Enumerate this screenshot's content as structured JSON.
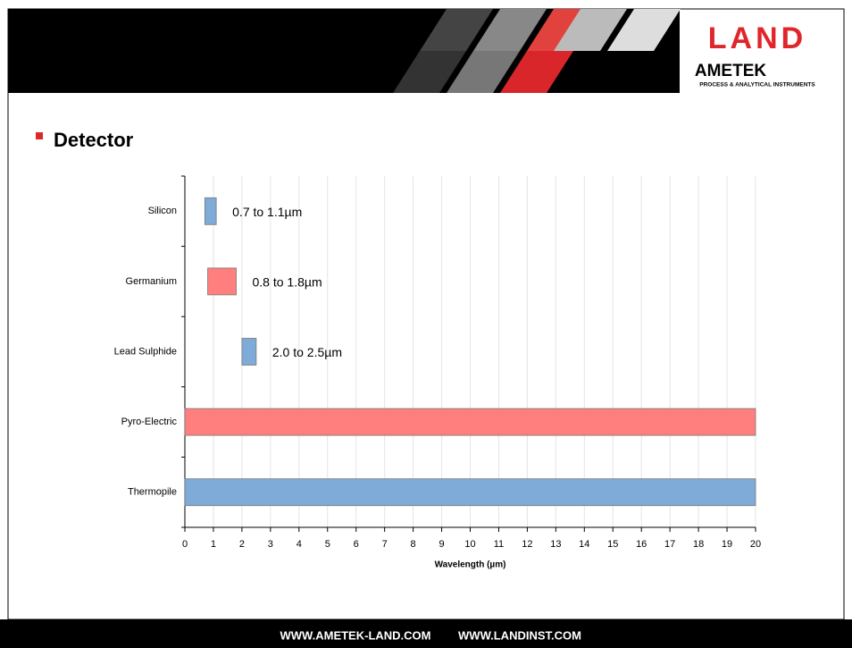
{
  "header": {
    "logo": "LAND",
    "brand": "AMETEK",
    "tagline": "PROCESS & ANALYTICAL INSTRUMENTS"
  },
  "heading": "Detector",
  "footer": {
    "links": [
      "WWW.AMETEK-LAND.COM",
      "WWW.LANDINST.COM"
    ]
  },
  "chart_data": {
    "type": "range-bar",
    "categories": [
      "Silicon",
      "Germanium",
      "Lead Sulphide",
      "Pyro-Electric",
      "Thermopile"
    ],
    "starts": [
      0.7,
      0.8,
      2.0,
      0,
      0
    ],
    "ends": [
      1.1,
      1.8,
      2.5,
      20,
      20
    ],
    "value_labels": [
      "0.7 to 1.1µm",
      "0.8 to 1.8µm",
      "2.0 to 2.5µm",
      null,
      null
    ],
    "colors": [
      "#7fabd8",
      "#ff7f7f",
      "#7fabd8",
      "#ff7f7f",
      "#7fabd8"
    ],
    "xlabel": "Wavelength (µm)",
    "xlim": [
      0,
      20
    ],
    "xticks": [
      0,
      1,
      2,
      3,
      4,
      5,
      6,
      7,
      8,
      9,
      10,
      11,
      12,
      13,
      14,
      15,
      16,
      17,
      18,
      19,
      20
    ],
    "grid": true
  }
}
